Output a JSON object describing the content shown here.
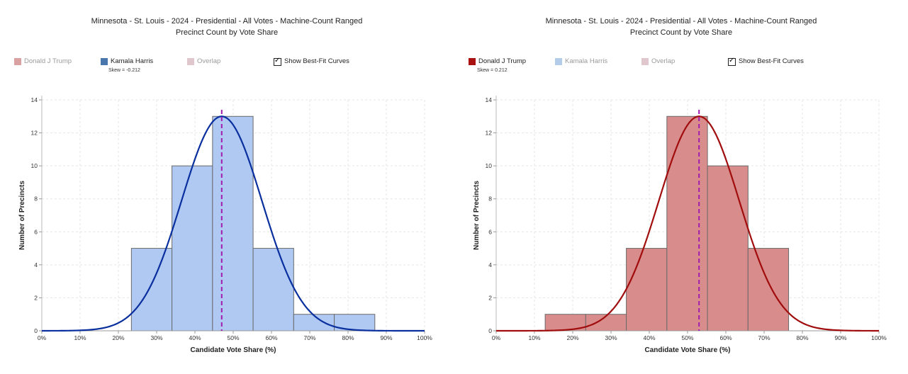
{
  "colors": {
    "trump": "#aa1111",
    "trump_inactive": "#d9a1a1",
    "trump_fill": "#d98c8c",
    "harris": "#4a78ad",
    "harris_inactive": "#b3cce9",
    "harris_fill": "#b0c9f3",
    "overlap_inactive": "#dfc7cd",
    "harris_curve": "#0a2f9e",
    "trump_curve": "#a10d0d",
    "mean_line": "#a21caf",
    "bar_stroke": "#6a6a6a",
    "grid": "#e6e6e6"
  },
  "legend": {
    "trump": "Donald J Trump",
    "harris": "Kamala Harris",
    "overlap": "Overlap",
    "best_fit": "Show Best-Fit Curves"
  },
  "chart_data": [
    {
      "type": "bar",
      "title": "Minnesota - St. Louis - 2024 - Presidential - All Votes - Machine-Count Ranged",
      "subtitle": "Precinct Count by Vote Share",
      "active_series": "harris",
      "skew_label": "Skew = -0.212",
      "xlabel": "Candidate Vote Share (%)",
      "ylabel": "Number of Precincts",
      "xlim": [
        0,
        100
      ],
      "ylim": [
        0,
        14
      ],
      "xticks": [
        0,
        10,
        20,
        30,
        40,
        50,
        60,
        70,
        80,
        90,
        100
      ],
      "xtick_labels": [
        "0%",
        "10%",
        "20%",
        "30%",
        "40%",
        "50%",
        "60%",
        "70%",
        "80%",
        "90%",
        "100%"
      ],
      "yticks": [
        0,
        2,
        4,
        6,
        8,
        10,
        12,
        14
      ],
      "ytick_labels": [
        "0",
        "2",
        "4",
        "6",
        "8",
        "10",
        "12",
        "14"
      ],
      "bins": [
        {
          "x0": 23.4,
          "x1": 34.0,
          "count": 5
        },
        {
          "x0": 34.0,
          "x1": 44.6,
          "count": 10
        },
        {
          "x0": 44.6,
          "x1": 55.2,
          "count": 13
        },
        {
          "x0": 55.2,
          "x1": 65.8,
          "count": 5
        },
        {
          "x0": 65.8,
          "x1": 76.4,
          "count": 1
        },
        {
          "x0": 76.4,
          "x1": 87.0,
          "count": 1
        }
      ],
      "fit_curve": {
        "mean": 47.0,
        "sd": 10.5,
        "peak": 13.0
      },
      "mean_line": 47.0
    },
    {
      "type": "bar",
      "title": "Minnesota - St. Louis - 2024 - Presidential - All Votes - Machine-Count Ranged",
      "subtitle": "Precinct Count by Vote Share",
      "active_series": "trump",
      "skew_label": "Skew = 0.212",
      "xlabel": "Candidate Vote Share (%)",
      "ylabel": "Number of Precincts",
      "xlim": [
        0,
        100
      ],
      "ylim": [
        0,
        14
      ],
      "xticks": [
        0,
        10,
        20,
        30,
        40,
        50,
        60,
        70,
        80,
        90,
        100
      ],
      "xtick_labels": [
        "0%",
        "10%",
        "20%",
        "30%",
        "40%",
        "50%",
        "60%",
        "70%",
        "80%",
        "90%",
        "100%"
      ],
      "yticks": [
        0,
        2,
        4,
        6,
        8,
        10,
        12,
        14
      ],
      "ytick_labels": [
        "0",
        "2",
        "4",
        "6",
        "8",
        "10",
        "12",
        "14"
      ],
      "bins": [
        {
          "x0": 12.8,
          "x1": 23.4,
          "count": 1
        },
        {
          "x0": 23.4,
          "x1": 34.0,
          "count": 1
        },
        {
          "x0": 34.0,
          "x1": 44.6,
          "count": 5
        },
        {
          "x0": 44.6,
          "x1": 55.2,
          "count": 13
        },
        {
          "x0": 55.2,
          "x1": 65.8,
          "count": 10
        },
        {
          "x0": 65.8,
          "x1": 76.4,
          "count": 5
        }
      ],
      "fit_curve": {
        "mean": 53.0,
        "sd": 10.5,
        "peak": 13.0
      },
      "mean_line": 53.0
    }
  ]
}
